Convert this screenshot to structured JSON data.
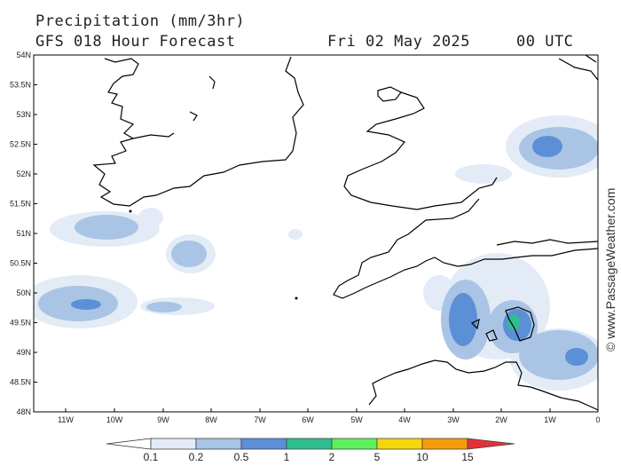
{
  "header": {
    "title": "Precipitation (mm/3hr)",
    "subtitle": "GFS 018 Hour Forecast",
    "date": "Fri 02 May 2025",
    "time": "00 UTC"
  },
  "map": {
    "lat_labels": [
      "54N",
      "53.5N",
      "53N",
      "52.5N",
      "52N",
      "51.5N",
      "51N",
      "50.5N",
      "50N",
      "49.5N",
      "49N",
      "48.5N",
      "48N"
    ],
    "lon_labels": [
      "11W",
      "10W",
      "9W",
      "8W",
      "7W",
      "6W",
      "5W",
      "4W",
      "3W",
      "2W",
      "1W",
      "0"
    ],
    "land_outline_color": "#000000"
  },
  "credit": "© www.PassageWeather.com",
  "colorbar": {
    "labels": [
      "0.1",
      "0.2",
      "0.5",
      "1",
      "2",
      "5",
      "10",
      "15"
    ],
    "colors": [
      "#ffffff",
      "#e3ebf6",
      "#a9c4e4",
      "#5b8fd6",
      "#2fbf8e",
      "#5ef05a",
      "#f5d60a",
      "#f59b0a",
      "#e5303a"
    ]
  }
}
